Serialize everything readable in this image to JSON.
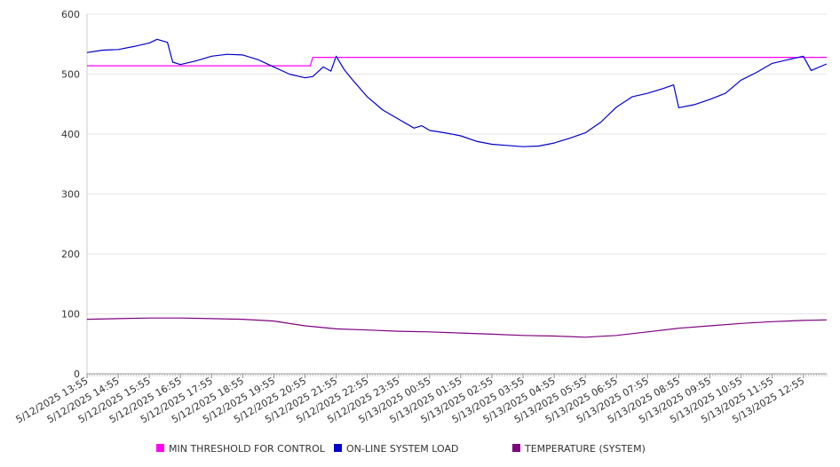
{
  "chart_data": {
    "type": "line",
    "title": "",
    "xlabel": "",
    "ylabel": "",
    "ylim": [
      0,
      600
    ],
    "yticks": [
      0,
      100,
      200,
      300,
      400,
      500,
      600
    ],
    "grid": true,
    "legend_position": "bottom",
    "x_tick_labels": [
      "5/12/2025 13:55",
      "5/12/2025 14:55",
      "5/12/2025 15:55",
      "5/12/2025 16:55",
      "5/12/2025 17:55",
      "5/12/2025 18:55",
      "5/12/2025 19:55",
      "5/12/2025 20:55",
      "5/12/2025 21:55",
      "5/12/2025 22:55",
      "5/12/2025 23:55",
      "5/13/2025 00:55",
      "5/13/2025 01:55",
      "5/13/2025 02:55",
      "5/13/2025 03:55",
      "5/13/2025 04:55",
      "5/13/2025 05:55",
      "5/13/2025 06:55",
      "5/13/2025 07:55",
      "5/13/2025 08:55",
      "5/13/2025 09:55",
      "5/13/2025 10:55",
      "5/13/2025 11:55",
      "5/13/2025 12:55"
    ],
    "series": [
      {
        "name": "MIN THRESHOLD FOR CONTROL",
        "color": "#ff00ff",
        "points": [
          [
            "5/12/2025 13:55",
            514
          ],
          [
            "5/12/2025 21:05",
            514
          ],
          [
            "5/12/2025 21:10",
            528
          ],
          [
            "5/13/2025 13:40",
            528
          ]
        ]
      },
      {
        "name": "ON-LINE SYSTEM LOAD",
        "color": "#0000cc",
        "points": [
          [
            "5/12/2025 13:55",
            536
          ],
          [
            "5/12/2025 14:25",
            540
          ],
          [
            "5/12/2025 14:55",
            541
          ],
          [
            "5/12/2025 15:25",
            546
          ],
          [
            "5/12/2025 15:55",
            552
          ],
          [
            "5/12/2025 16:10",
            558
          ],
          [
            "5/12/2025 16:30",
            553
          ],
          [
            "5/12/2025 16:40",
            520
          ],
          [
            "5/12/2025 16:55",
            516
          ],
          [
            "5/12/2025 17:25",
            522
          ],
          [
            "5/12/2025 17:55",
            530
          ],
          [
            "5/12/2025 18:25",
            533
          ],
          [
            "5/12/2025 18:55",
            532
          ],
          [
            "5/12/2025 19:25",
            524
          ],
          [
            "5/12/2025 19:55",
            512
          ],
          [
            "5/12/2025 20:25",
            500
          ],
          [
            "5/12/2025 20:55",
            494
          ],
          [
            "5/12/2025 21:10",
            496
          ],
          [
            "5/12/2025 21:30",
            512
          ],
          [
            "5/12/2025 21:45",
            505
          ],
          [
            "5/12/2025 21:55",
            530
          ],
          [
            "5/12/2025 22:10",
            508
          ],
          [
            "5/12/2025 22:25",
            492
          ],
          [
            "5/12/2025 22:55",
            462
          ],
          [
            "5/12/2025 23:25",
            440
          ],
          [
            "5/12/2025 23:55",
            425
          ],
          [
            "5/13/2025 00:25",
            410
          ],
          [
            "5/13/2025 00:40",
            414
          ],
          [
            "5/13/2025 00:55",
            406
          ],
          [
            "5/13/2025 01:25",
            402
          ],
          [
            "5/13/2025 01:55",
            397
          ],
          [
            "5/13/2025 02:25",
            388
          ],
          [
            "5/13/2025 02:55",
            383
          ],
          [
            "5/13/2025 03:25",
            381
          ],
          [
            "5/13/2025 03:55",
            379
          ],
          [
            "5/13/2025 04:25",
            380
          ],
          [
            "5/13/2025 04:55",
            385
          ],
          [
            "5/13/2025 05:25",
            393
          ],
          [
            "5/13/2025 05:55",
            402
          ],
          [
            "5/13/2025 06:25",
            420
          ],
          [
            "5/13/2025 06:55",
            445
          ],
          [
            "5/13/2025 07:25",
            462
          ],
          [
            "5/13/2025 07:55",
            468
          ],
          [
            "5/13/2025 08:25",
            476
          ],
          [
            "5/13/2025 08:45",
            482
          ],
          [
            "5/13/2025 08:55",
            444
          ],
          [
            "5/13/2025 09:25",
            449
          ],
          [
            "5/13/2025 09:55",
            458
          ],
          [
            "5/13/2025 10:25",
            468
          ],
          [
            "5/13/2025 10:55",
            490
          ],
          [
            "5/13/2025 11:25",
            503
          ],
          [
            "5/13/2025 11:55",
            518
          ],
          [
            "5/13/2025 12:25",
            524
          ],
          [
            "5/13/2025 12:55",
            530
          ],
          [
            "5/13/2025 13:10",
            506
          ],
          [
            "5/13/2025 13:40",
            517
          ]
        ]
      },
      {
        "name": "TEMPERATURE (SYSTEM)",
        "color": "#800080",
        "points": [
          [
            "5/12/2025 13:55",
            91
          ],
          [
            "5/12/2025 14:55",
            92
          ],
          [
            "5/12/2025 15:55",
            93
          ],
          [
            "5/12/2025 16:55",
            93
          ],
          [
            "5/12/2025 17:55",
            92
          ],
          [
            "5/12/2025 18:55",
            91
          ],
          [
            "5/12/2025 19:55",
            88
          ],
          [
            "5/12/2025 20:55",
            80
          ],
          [
            "5/12/2025 21:55",
            75
          ],
          [
            "5/12/2025 22:55",
            73
          ],
          [
            "5/12/2025 23:55",
            71
          ],
          [
            "5/13/2025 00:55",
            70
          ],
          [
            "5/13/2025 01:55",
            68
          ],
          [
            "5/13/2025 02:55",
            66
          ],
          [
            "5/13/2025 03:55",
            64
          ],
          [
            "5/13/2025 04:55",
            63
          ],
          [
            "5/13/2025 05:55",
            61
          ],
          [
            "5/13/2025 06:55",
            64
          ],
          [
            "5/13/2025 07:55",
            70
          ],
          [
            "5/13/2025 08:55",
            76
          ],
          [
            "5/13/2025 09:55",
            80
          ],
          [
            "5/13/2025 10:55",
            84
          ],
          [
            "5/13/2025 11:55",
            87
          ],
          [
            "5/13/2025 12:55",
            89
          ],
          [
            "5/13/2025 13:40",
            90
          ]
        ]
      }
    ]
  }
}
